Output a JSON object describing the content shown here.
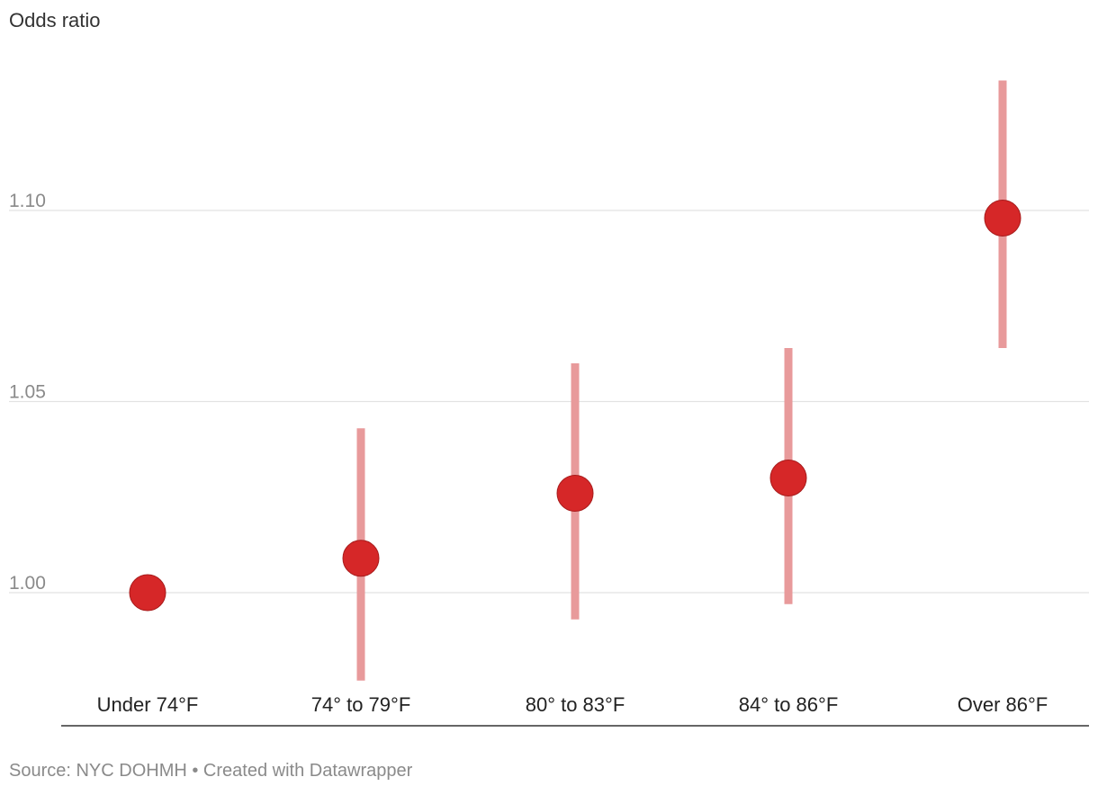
{
  "chart_data": {
    "type": "scatter",
    "title": "",
    "ylabel": "Odds ratio",
    "xlabel": "",
    "categories": [
      "Under 74°F",
      "74° to 79°F",
      "80° to 83°F",
      "84° to 86°F",
      "Over 86°F"
    ],
    "values": [
      1.0,
      1.009,
      1.026,
      1.03,
      1.098
    ],
    "ci_low": [
      null,
      0.977,
      0.993,
      0.997,
      1.064
    ],
    "ci_high": [
      null,
      1.043,
      1.06,
      1.064,
      1.134
    ],
    "yticks": [
      "1.00",
      "1.05",
      "1.10"
    ],
    "ytick_values": [
      1.0,
      1.05,
      1.1
    ],
    "ylim": [
      0.977,
      1.135
    ],
    "grid": true,
    "legend": "none",
    "point_color": "#d62728",
    "ci_color": "#e89a9b"
  },
  "source": "Source: NYC DOHMH • Created with Datawrapper"
}
